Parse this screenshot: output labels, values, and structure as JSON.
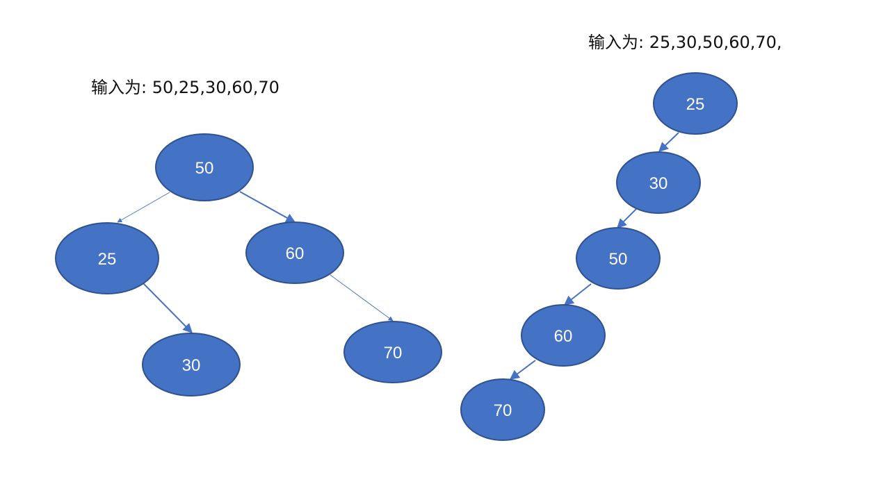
{
  "colors": {
    "node_fill": "#4472C4",
    "node_stroke": "#2F528F",
    "edge": "#4472C4",
    "text": "#111111"
  },
  "left_tree": {
    "caption": "输入为: 50,25,30,60,70",
    "nodes": [
      "50",
      "25",
      "60",
      "30",
      "70"
    ]
  },
  "right_tree": {
    "caption": "输入为: 25,30,50,60,70,",
    "nodes": [
      "25",
      "30",
      "50",
      "60",
      "70"
    ]
  }
}
